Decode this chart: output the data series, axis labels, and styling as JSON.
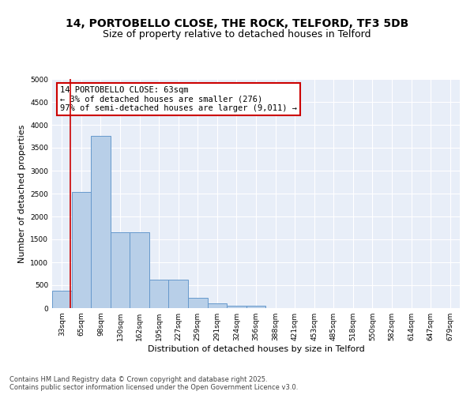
{
  "title": "14, PORTOBELLO CLOSE, THE ROCK, TELFORD, TF3 5DB",
  "subtitle": "Size of property relative to detached houses in Telford",
  "xlabel": "Distribution of detached houses by size in Telford",
  "ylabel": "Number of detached properties",
  "categories": [
    "33sqm",
    "65sqm",
    "98sqm",
    "130sqm",
    "162sqm",
    "195sqm",
    "227sqm",
    "259sqm",
    "291sqm",
    "324sqm",
    "356sqm",
    "388sqm",
    "421sqm",
    "453sqm",
    "485sqm",
    "518sqm",
    "550sqm",
    "582sqm",
    "614sqm",
    "647sqm",
    "679sqm"
  ],
  "values": [
    380,
    2530,
    3760,
    1660,
    1660,
    620,
    620,
    230,
    110,
    60,
    50,
    0,
    0,
    0,
    0,
    0,
    0,
    0,
    0,
    0,
    0
  ],
  "bar_color": "#b8cfe8",
  "bar_edgecolor": "#6699cc",
  "vline_color": "#cc0000",
  "annotation_text": "14 PORTOBELLO CLOSE: 63sqm\n← 3% of detached houses are smaller (276)\n97% of semi-detached houses are larger (9,011) →",
  "annotation_box_color": "#cc0000",
  "ylim": [
    0,
    5000
  ],
  "yticks": [
    0,
    500,
    1000,
    1500,
    2000,
    2500,
    3000,
    3500,
    4000,
    4500,
    5000
  ],
  "background_color": "#e8eef8",
  "footer_text": "Contains HM Land Registry data © Crown copyright and database right 2025.\nContains public sector information licensed under the Open Government Licence v3.0.",
  "title_fontsize": 10,
  "subtitle_fontsize": 9,
  "axis_label_fontsize": 8,
  "tick_fontsize": 6.5,
  "annotation_fontsize": 7.5,
  "footer_fontsize": 6
}
